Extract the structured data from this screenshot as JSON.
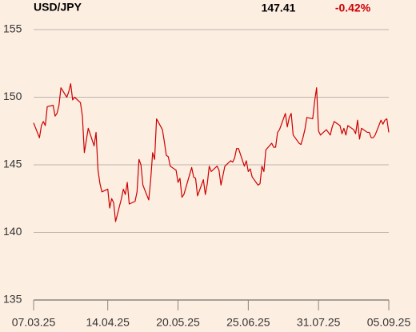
{
  "chart_data": {
    "type": "line",
    "title": "USD/JPY",
    "price": 147.41,
    "change": {
      "value": -0.42,
      "label": "-0.42%"
    },
    "x": [
      "07.03.25",
      "10.03.25",
      "11.03.25",
      "12.03.25",
      "13.03.25",
      "14.03.25",
      "17.03.25",
      "18.03.25",
      "19.03.25",
      "20.03.25",
      "21.03.25",
      "24.03.25",
      "25.03.25",
      "26.03.25",
      "27.03.25",
      "28.03.25",
      "31.03.25",
      "01.04.25",
      "02.04.25",
      "03.04.25",
      "04.04.25",
      "07.04.25",
      "08.04.25",
      "09.04.25",
      "10.04.25",
      "11.04.25",
      "14.04.25",
      "15.04.25",
      "16.04.25",
      "17.04.25",
      "18.04.25",
      "21.04.25",
      "22.04.25",
      "23.04.25",
      "24.04.25",
      "25.04.25",
      "28.04.25",
      "29.04.25",
      "30.04.25",
      "01.05.25",
      "02.05.25",
      "05.05.25",
      "06.05.25",
      "07.05.25",
      "08.05.25",
      "09.05.25",
      "12.05.25",
      "13.05.25",
      "14.05.25",
      "15.05.25",
      "16.05.25",
      "19.05.25",
      "20.05.25",
      "21.05.25",
      "22.05.25",
      "23.05.25",
      "26.05.25",
      "27.05.25",
      "28.05.25",
      "29.05.25",
      "30.05.25",
      "02.06.25",
      "03.06.25",
      "04.06.25",
      "05.06.25",
      "06.06.25",
      "09.06.25",
      "10.06.25",
      "11.06.25",
      "12.06.25",
      "13.06.25",
      "16.06.25",
      "17.06.25",
      "18.06.25",
      "19.06.25",
      "20.06.25",
      "23.06.25",
      "24.06.25",
      "25.06.25",
      "26.06.25",
      "27.06.25",
      "30.06.25",
      "01.07.25",
      "02.07.25",
      "03.07.25",
      "04.07.25",
      "07.07.25",
      "08.07.25",
      "09.07.25",
      "10.07.25",
      "11.07.25",
      "14.07.25",
      "15.07.25",
      "16.07.25",
      "17.07.25",
      "18.07.25",
      "21.07.25",
      "22.07.25",
      "23.07.25",
      "24.07.25",
      "25.07.25",
      "28.07.25",
      "29.07.25",
      "30.07.25",
      "31.07.25",
      "01.08.25",
      "04.08.25",
      "05.08.25",
      "06.08.25",
      "07.08.25",
      "08.08.25",
      "11.08.25",
      "12.08.25",
      "13.08.25",
      "14.08.25",
      "15.08.25",
      "18.08.25",
      "19.08.25",
      "20.08.25",
      "21.08.25",
      "22.08.25",
      "25.08.25",
      "26.08.25",
      "27.08.25",
      "28.08.25",
      "29.08.25",
      "01.09.25",
      "02.09.25",
      "03.09.25",
      "04.09.25",
      "05.09.25"
    ],
    "series": [
      {
        "color": "#cc0000",
        "values": [
          148.1,
          147.0,
          147.9,
          148.2,
          147.9,
          149.3,
          149.4,
          148.6,
          148.8,
          149.4,
          150.7,
          150.0,
          150.4,
          151.0,
          149.8,
          150.0,
          149.6,
          148.6,
          145.9,
          146.8,
          147.7,
          146.4,
          147.4,
          144.6,
          143.6,
          143.0,
          143.2,
          141.8,
          142.5,
          142.2,
          140.8,
          142.5,
          143.2,
          142.8,
          143.7,
          142.1,
          142.3,
          143.0,
          145.4,
          145.0,
          143.5,
          142.4,
          143.9,
          145.9,
          145.4,
          148.4,
          147.6,
          146.7,
          145.7,
          145.6,
          144.9,
          144.6,
          143.7,
          144.0,
          142.6,
          142.8,
          144.3,
          144.8,
          144.1,
          144.0,
          142.7,
          143.9,
          142.8,
          143.6,
          144.9,
          144.5,
          144.9,
          144.6,
          143.5,
          144.2,
          144.9,
          145.3,
          145.2,
          145.5,
          146.2,
          146.2,
          144.9,
          145.3,
          144.5,
          144.7,
          144.1,
          143.5,
          143.6,
          144.9,
          144.5,
          146.1,
          146.6,
          146.3,
          146.3,
          147.4,
          147.6,
          148.8,
          147.8,
          148.5,
          148.8,
          147.2,
          146.6,
          146.5,
          147.0,
          147.6,
          148.5,
          148.4,
          149.7,
          150.7,
          147.5,
          147.2,
          147.6,
          147.4,
          147.2,
          147.8,
          148.2,
          147.9,
          147.3,
          147.7,
          147.2,
          147.9,
          147.6,
          147.3,
          148.3,
          146.9,
          147.7,
          147.4,
          147.4,
          147.0,
          147.0,
          147.2,
          148.3,
          148.0,
          148.3,
          148.4,
          147.4
        ]
      }
    ],
    "xlim": [
      "07.03.25",
      "05.09.25"
    ],
    "xticks": [
      "07.03.25",
      "14.04.25",
      "20.05.25",
      "25.06.25",
      "31.07.25",
      "05.09.25"
    ],
    "ylim": [
      135,
      155
    ],
    "yticks": [
      135,
      140,
      145,
      150,
      155
    ],
    "grid": true
  }
}
